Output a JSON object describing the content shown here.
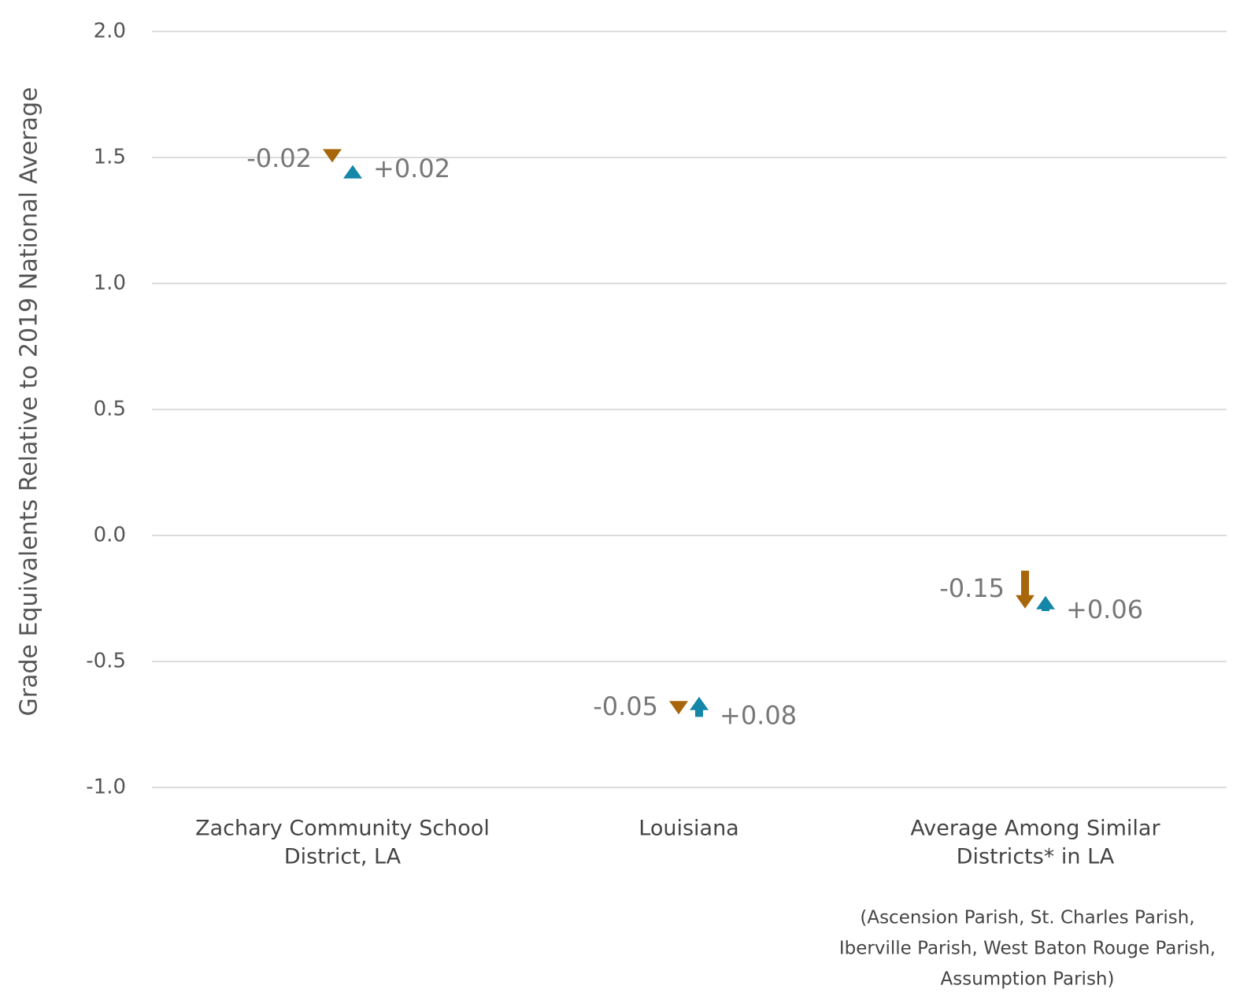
{
  "chart_data": {
    "type": "arrow",
    "y_label": "Grade Equivalents Relative to 2019 National Average",
    "categories": [
      [
        "Zachary Community School",
        "District, LA"
      ],
      [
        "Louisiana"
      ],
      [
        "Average Among Similar",
        "Districts* in LA"
      ]
    ],
    "series": [
      {
        "color": "#a8660a",
        "from": [
          1.5,
          -0.66,
          -0.14
        ],
        "to": [
          1.48,
          -0.71,
          -0.29
        ],
        "value_labels": [
          "-0.02",
          "-0.05",
          "-0.15"
        ]
      },
      {
        "color": "#1486a8",
        "from": [
          1.45,
          -0.72,
          -0.3
        ],
        "to": [
          1.47,
          -0.64,
          -0.24
        ],
        "value_labels": [
          "+0.02",
          "+0.08",
          "+0.06"
        ]
      }
    ],
    "ylim": [
      -1.0,
      2.0
    ],
    "yticks": [
      {
        "value": -1.0,
        "label": "-1.0"
      },
      {
        "value": -0.5,
        "label": "-0.5"
      },
      {
        "value": 0,
        "label": "0.0"
      },
      {
        "value": 0.5,
        "label": "0.5"
      },
      {
        "value": 1.0,
        "label": "1.0"
      },
      {
        "value": 1.5,
        "label": "1.5"
      },
      {
        "value": 2.0,
        "label": "2.0"
      }
    ],
    "grid": true,
    "note": [
      "(Ascension Parish, St. Charles Parish,",
      "Iberville Parish, West Baton Rouge Parish,",
      "Assumption Parish)"
    ]
  }
}
